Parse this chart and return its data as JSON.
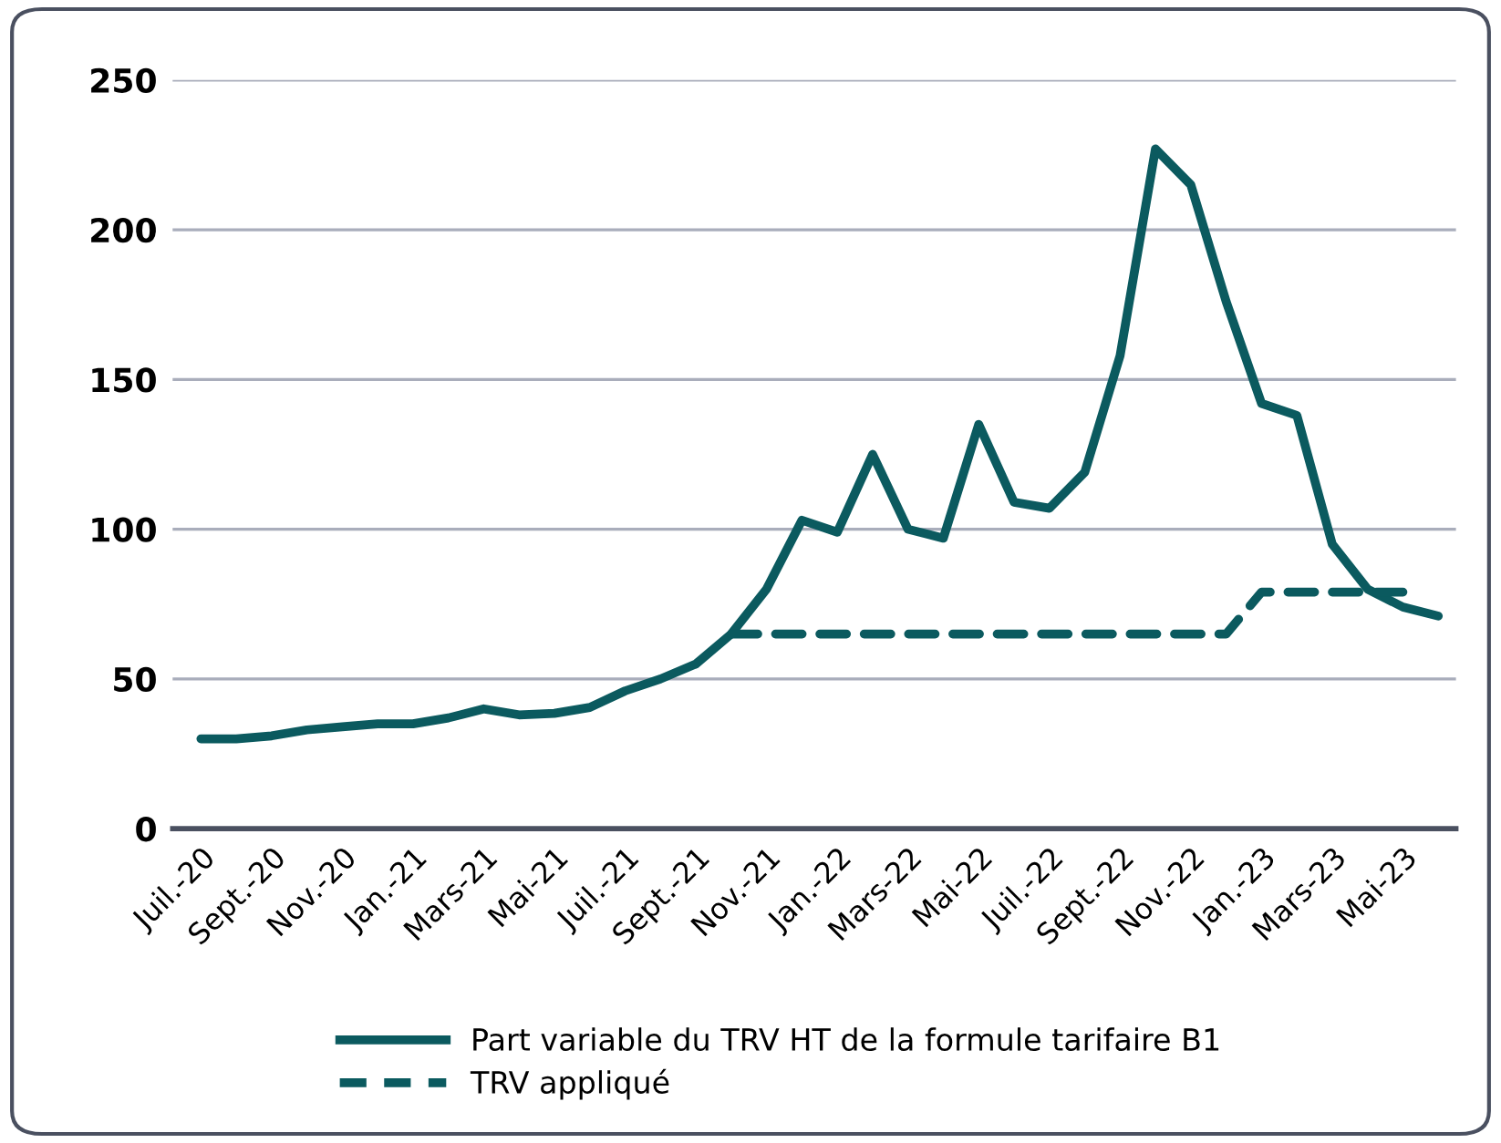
{
  "chart_data": {
    "type": "line",
    "categories": [
      "Juil.-20",
      null,
      "Sept.-20",
      null,
      "Nov.-20",
      null,
      "Jan.-21",
      null,
      "Mars-21",
      null,
      "Mai-21",
      null,
      "Juil.-21",
      null,
      "Sept.-21",
      null,
      "Nov.-21",
      null,
      "Jan.-22",
      null,
      "Mars-22",
      null,
      "Mai-22",
      null,
      "Juil.-22",
      null,
      "Sept.-22",
      null,
      "Nov.-22",
      null,
      "Jan.-23",
      null,
      "Mars-23",
      null,
      "Mai-23",
      null
    ],
    "series": [
      {
        "name": "Part variable du TRV HT de la formule tarifaire B1",
        "color": "#0b5a5f",
        "line_style": "solid",
        "values": [
          30,
          30,
          31,
          33,
          34,
          35,
          35,
          37,
          40,
          38,
          38.5,
          40.5,
          46,
          50,
          55,
          65,
          80,
          103,
          99,
          125,
          100,
          97,
          135,
          109,
          107,
          119,
          158,
          227,
          215,
          176,
          142,
          138,
          95,
          80,
          74,
          71
        ]
      },
      {
        "name": "TRV appliqué",
        "color": "#0b5a5f",
        "line_style": "dashed",
        "values": [
          null,
          null,
          null,
          null,
          null,
          null,
          null,
          null,
          null,
          null,
          null,
          null,
          null,
          null,
          null,
          65,
          65,
          65,
          65,
          65,
          65,
          65,
          65,
          65,
          65,
          65,
          65,
          65,
          65,
          65,
          79,
          79,
          79,
          79,
          79,
          null
        ]
      }
    ],
    "ylim": [
      0,
      250
    ],
    "yticks": [
      0,
      50,
      100,
      150,
      200,
      250
    ],
    "grid": "y",
    "legend": "bottom"
  }
}
